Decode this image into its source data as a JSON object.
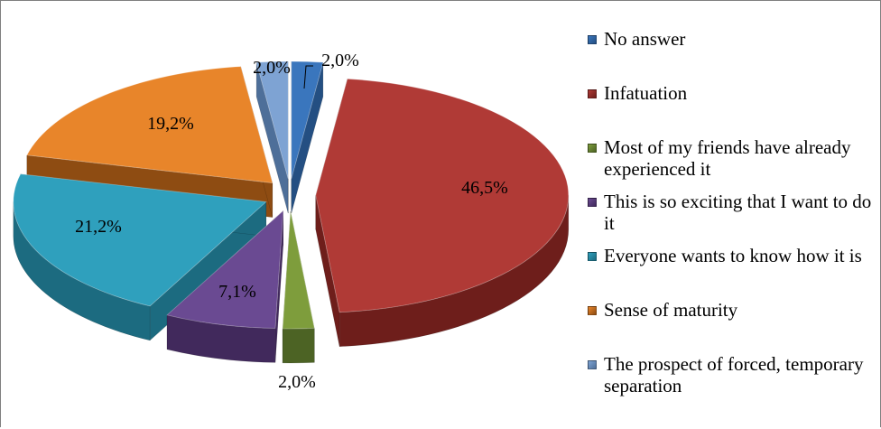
{
  "chart_data": {
    "type": "pie",
    "categories": [
      "No answer",
      "Infatuation",
      "Most of my friends have already experienced it",
      "This is so exciting that I want to do it",
      "Everyone wants to know how it is",
      "Sense of maturity",
      "The prospect of forced, temporary separation"
    ],
    "values": [
      2.0,
      46.5,
      2.0,
      7.1,
      21.2,
      19.2,
      2.0
    ],
    "data_labels": [
      "2,0%",
      "46,5%",
      "2,0%",
      "7,1%",
      "21,2%",
      "19,2%",
      "2,0%"
    ],
    "colors": [
      "#3a76bd",
      "#b03a36",
      "#7e9d3c",
      "#6a4a92",
      "#2fa0bd",
      "#e8852a",
      "#7ea3d3"
    ],
    "side_colors": [
      "#244f82",
      "#6e1e1b",
      "#4c6324",
      "#41295c",
      "#1c6b80",
      "#8e4c12",
      "#4e6f99"
    ],
    "exploded": true,
    "title": "",
    "legend_placement": "right",
    "unit": "%"
  }
}
